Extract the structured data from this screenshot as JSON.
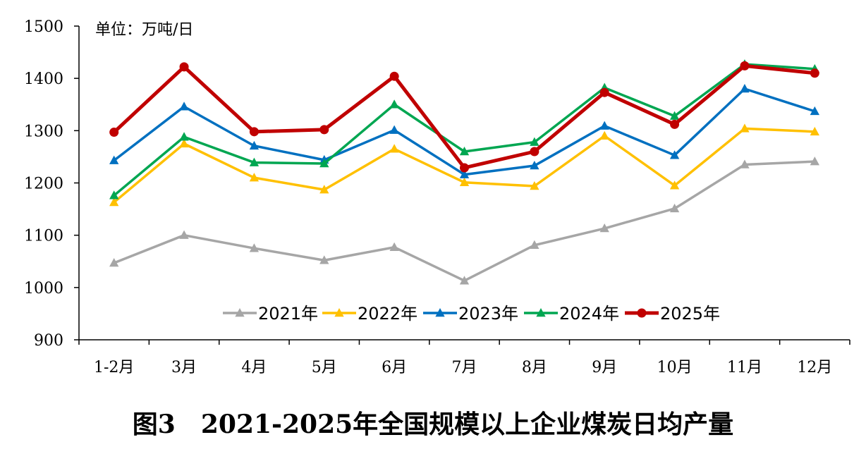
{
  "chart_data": {
    "type": "line",
    "unit_label": "单位：万吨/日",
    "caption": "图3　2021-2025年全国规模以上企业煤炭日均产量",
    "categories": [
      "1-2月",
      "3月",
      "4月",
      "5月",
      "6月",
      "7月",
      "8月",
      "9月",
      "10月",
      "11月",
      "12月"
    ],
    "ylim": [
      900,
      1500
    ],
    "yticks": [
      "900",
      "1000",
      "1100",
      "1200",
      "1300",
      "1400",
      "1500"
    ],
    "grid": false,
    "legend_position": "bottom-inside",
    "series": [
      {
        "name": "2021年",
        "color": "#a6a6a6",
        "marker": "triangle",
        "values": [
          1047,
          1100,
          1075,
          1052,
          1077,
          1013,
          1081,
          1113,
          1151,
          1235,
          1241
        ]
      },
      {
        "name": "2022年",
        "color": "#ffc000",
        "marker": "triangle",
        "values": [
          1163,
          1275,
          1210,
          1187,
          1265,
          1201,
          1194,
          1290,
          1195,
          1304,
          1298
        ]
      },
      {
        "name": "2023年",
        "color": "#0070c0",
        "marker": "triangle",
        "values": [
          1243,
          1346,
          1271,
          1244,
          1301,
          1216,
          1233,
          1309,
          1253,
          1380,
          1337
        ]
      },
      {
        "name": "2024年",
        "color": "#00a651",
        "marker": "triangle",
        "values": [
          1176,
          1288,
          1239,
          1237,
          1350,
          1260,
          1278,
          1382,
          1328,
          1427,
          1418
        ]
      },
      {
        "name": "2025年",
        "color": "#c00000",
        "marker": "circle",
        "values": [
          1297,
          1422,
          1298,
          1302,
          1404,
          1229,
          1260,
          1373,
          1312,
          1424,
          1410
        ]
      }
    ]
  }
}
